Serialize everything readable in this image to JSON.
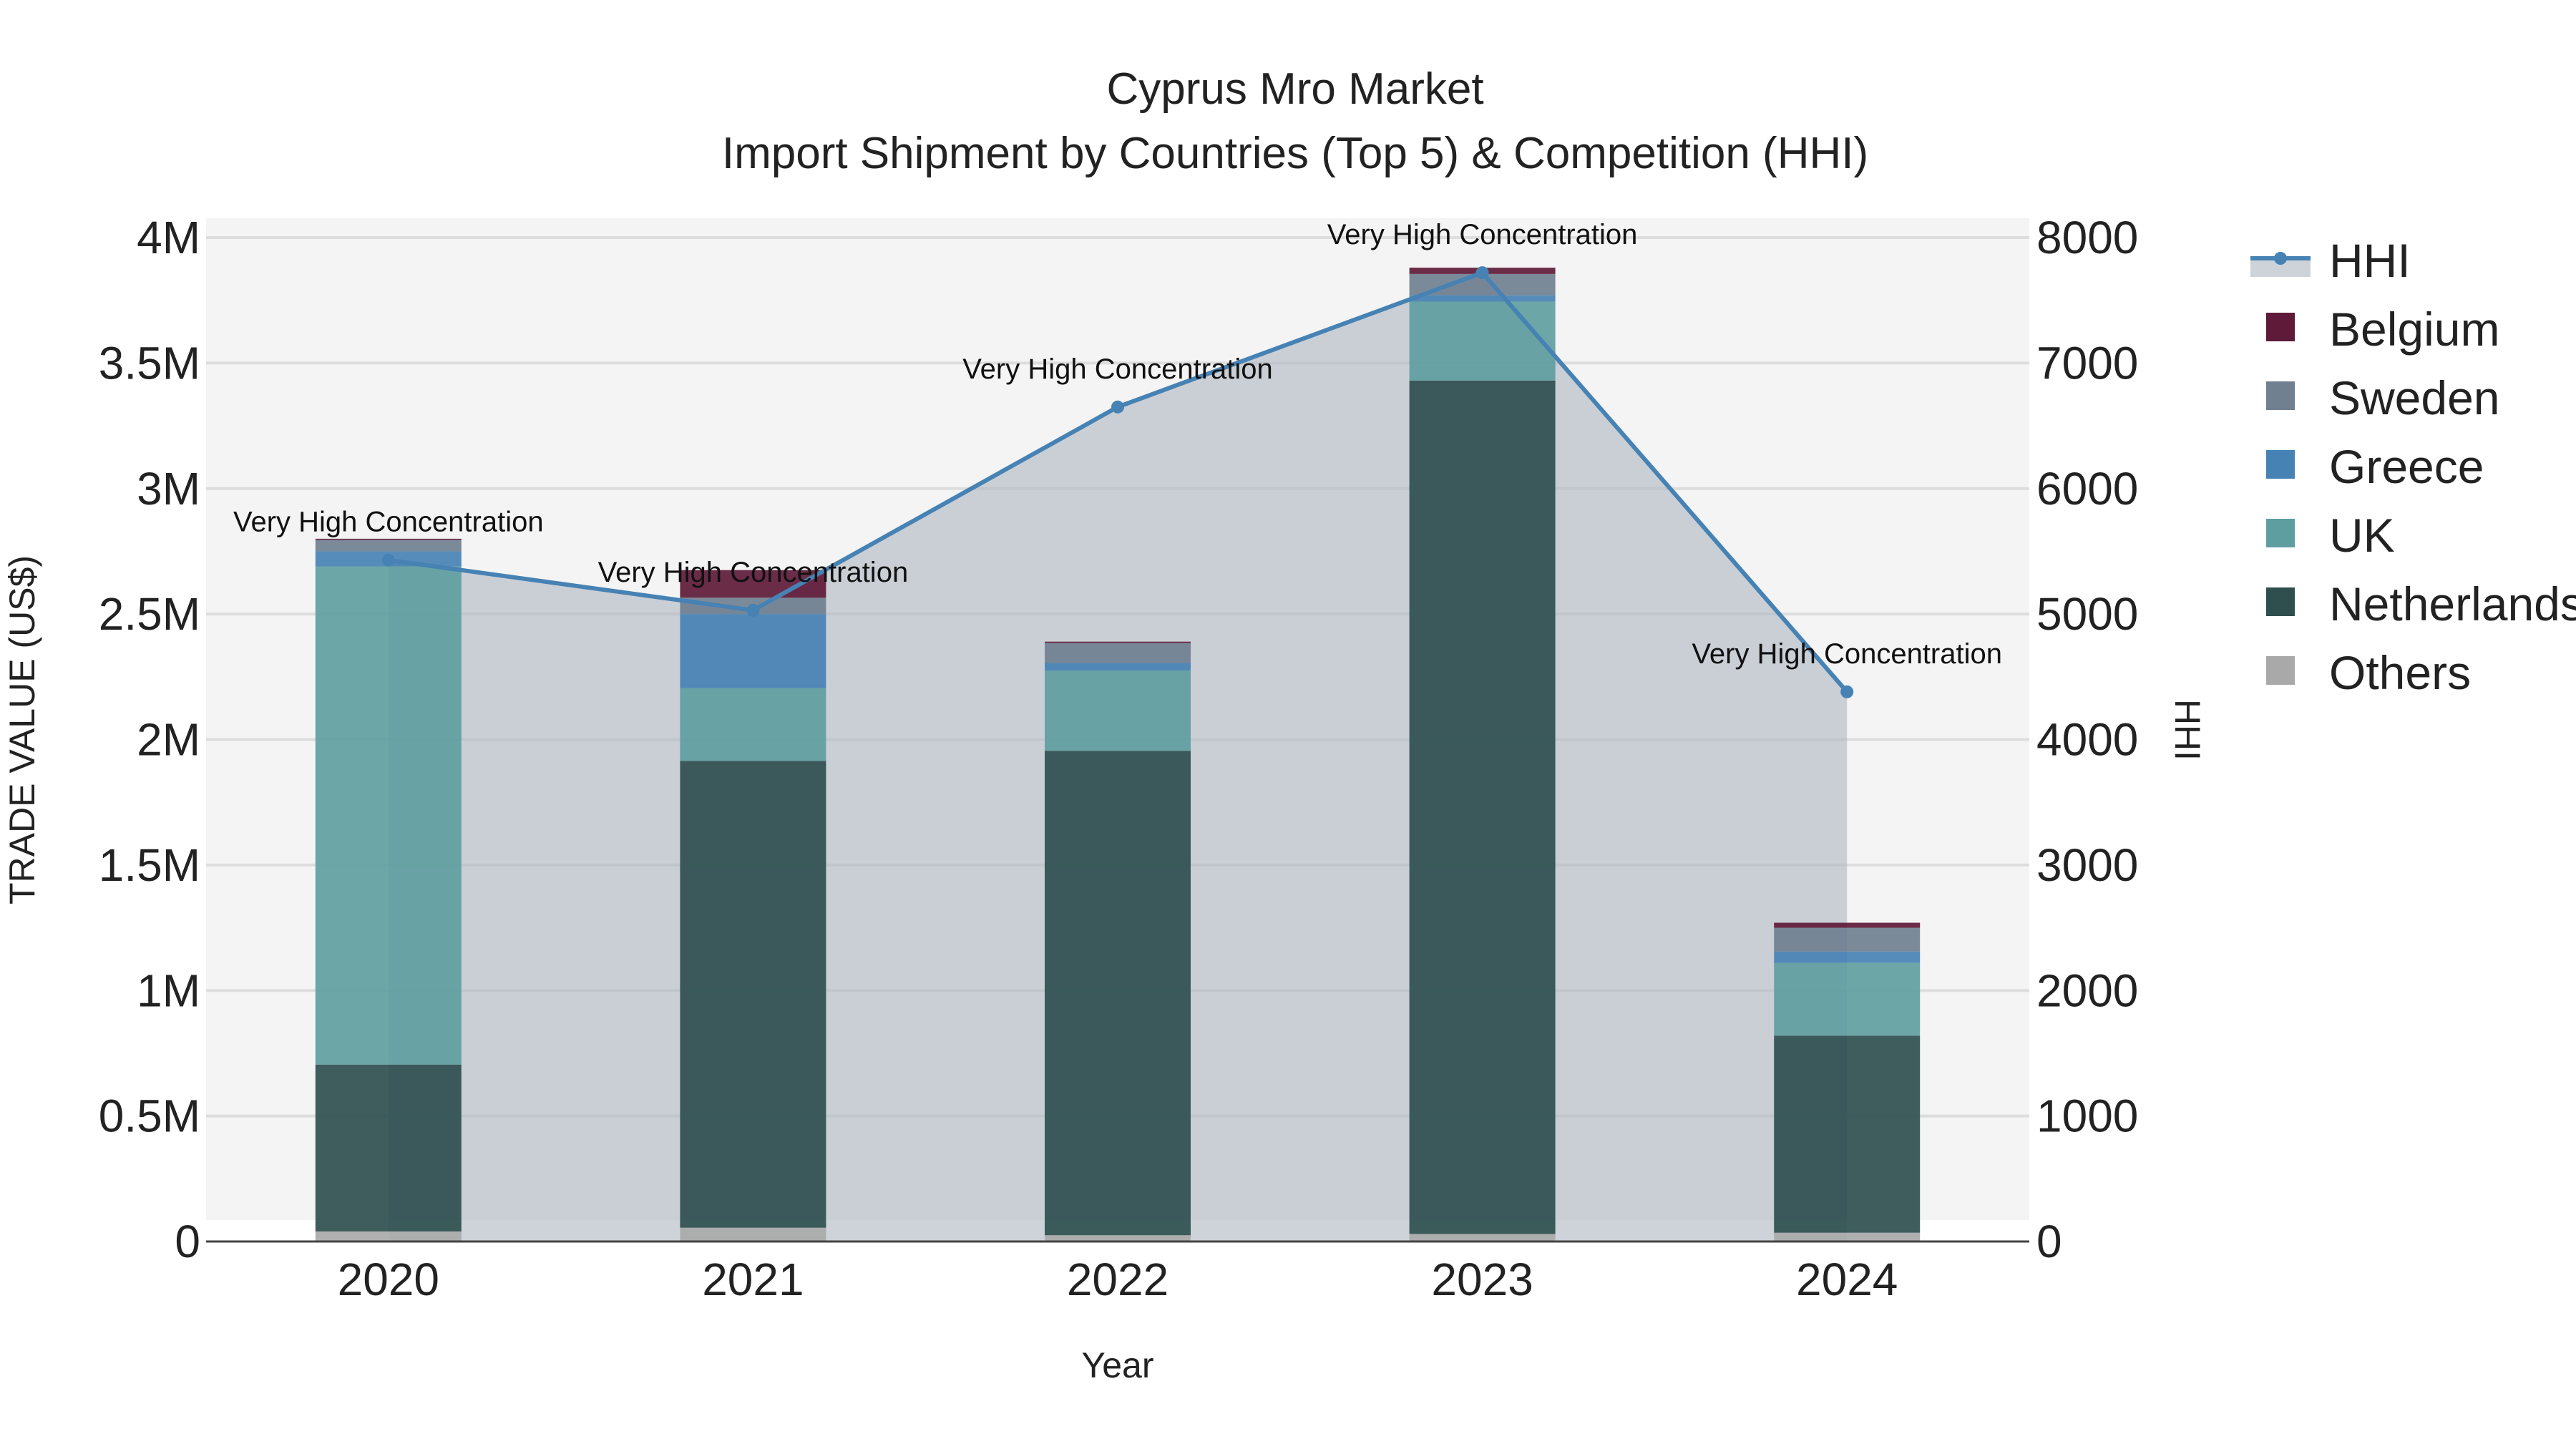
{
  "chart_data": {
    "type": "bar",
    "title": "Cyprus Mro Market",
    "subtitle": "Import Shipment by Countries (Top 5) & Competition (HHI)",
    "xlabel": "Year",
    "ylabel": "TRADE VALUE (US$)",
    "y2label": "HHI",
    "categories": [
      "2020",
      "2021",
      "2022",
      "2023",
      "2024"
    ],
    "ylim": [
      0,
      4000000
    ],
    "y2lim": [
      0,
      8000
    ],
    "yticks": [
      {
        "value": 0,
        "label": "0"
      },
      {
        "value": 500000,
        "label": "0.5M"
      },
      {
        "value": 1000000,
        "label": "1M"
      },
      {
        "value": 1500000,
        "label": "1.5M"
      },
      {
        "value": 2000000,
        "label": "2M"
      },
      {
        "value": 2500000,
        "label": "2.5M"
      },
      {
        "value": 3000000,
        "label": "3M"
      },
      {
        "value": 3500000,
        "label": "3.5M"
      },
      {
        "value": 4000000,
        "label": "4M"
      }
    ],
    "y2ticks": [
      {
        "value": 0,
        "label": "0"
      },
      {
        "value": 1000,
        "label": "1000"
      },
      {
        "value": 2000,
        "label": "2000"
      },
      {
        "value": 3000,
        "label": "3000"
      },
      {
        "value": 4000,
        "label": "4000"
      },
      {
        "value": 5000,
        "label": "5000"
      },
      {
        "value": 6000,
        "label": "6000"
      },
      {
        "value": 7000,
        "label": "7000"
      },
      {
        "value": 8000,
        "label": "8000"
      }
    ],
    "series": [
      {
        "name": "Others",
        "color": "#a9a9a9",
        "values": [
          40000,
          55000,
          25000,
          30000,
          35000
        ]
      },
      {
        "name": "Netherlands",
        "color": "#2f4f4f",
        "values": [
          665000,
          1860000,
          1930000,
          3400000,
          785000
        ]
      },
      {
        "name": "UK",
        "color": "#5f9ea0",
        "values": [
          1985000,
          290000,
          320000,
          315000,
          290000
        ]
      },
      {
        "name": "Greece",
        "color": "#4682b4",
        "values": [
          60000,
          295000,
          30000,
          25000,
          45000
        ]
      },
      {
        "name": "Sweden",
        "color": "#708090",
        "values": [
          45000,
          65000,
          80000,
          85000,
          95000
        ]
      },
      {
        "name": "Belgium",
        "color": "#5e1a38",
        "values": [
          5000,
          110000,
          5000,
          25000,
          20000
        ]
      }
    ],
    "hhi": {
      "name": "HHI",
      "color": "#4682b4",
      "values": [
        5430,
        5030,
        6650,
        7720,
        4380
      ],
      "labels": [
        "Very High Concentration",
        "Very High Concentration",
        "Very High Concentration",
        "Very High Concentration",
        "Very High Concentration"
      ]
    },
    "legend": [
      "HHI",
      "Belgium",
      "Sweden",
      "Greece",
      "UK",
      "Netherlands",
      "Others"
    ],
    "legend_position": "right"
  }
}
